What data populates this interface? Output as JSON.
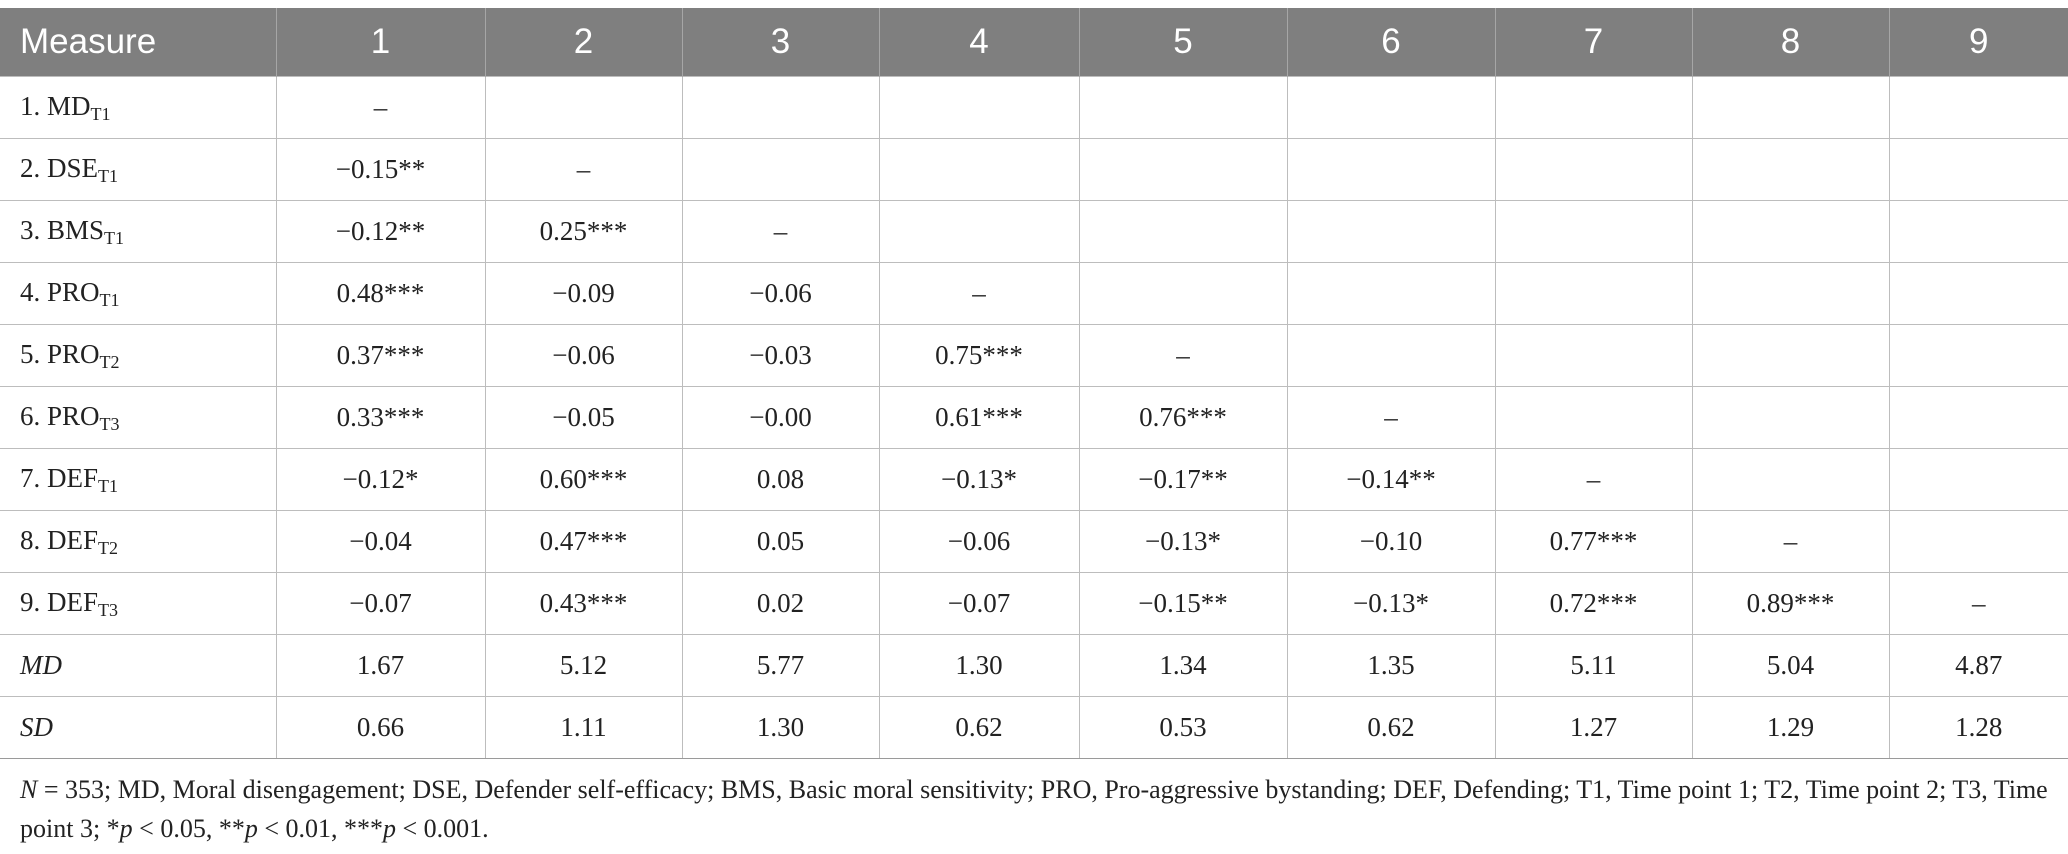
{
  "table": {
    "headers": [
      "Measure",
      "1",
      "2",
      "3",
      "4",
      "5",
      "6",
      "7",
      "8",
      "9"
    ],
    "rows": [
      {
        "label": "1. MD",
        "sub": "T1",
        "italic": false,
        "cells": [
          "–",
          "",
          "",
          "",
          "",
          "",
          "",
          "",
          ""
        ]
      },
      {
        "label": "2. DSE",
        "sub": "T1",
        "italic": false,
        "cells": [
          "−0.15**",
          "–",
          "",
          "",
          "",
          "",
          "",
          "",
          ""
        ]
      },
      {
        "label": "3. BMS",
        "sub": "T1",
        "italic": false,
        "cells": [
          "−0.12**",
          "0.25***",
          "–",
          "",
          "",
          "",
          "",
          "",
          ""
        ]
      },
      {
        "label": "4. PRO",
        "sub": "T1",
        "italic": false,
        "cells": [
          "0.48***",
          "−0.09",
          "−0.06",
          "–",
          "",
          "",
          "",
          "",
          ""
        ]
      },
      {
        "label": "5. PRO",
        "sub": "T2",
        "italic": false,
        "cells": [
          "0.37***",
          "−0.06",
          "−0.03",
          "0.75***",
          "–",
          "",
          "",
          "",
          ""
        ]
      },
      {
        "label": "6. PRO",
        "sub": "T3",
        "italic": false,
        "cells": [
          "0.33***",
          "−0.05",
          "−0.00",
          "0.61***",
          "0.76***",
          "–",
          "",
          "",
          ""
        ]
      },
      {
        "label": "7. DEF",
        "sub": "T1",
        "italic": false,
        "cells": [
          "−0.12*",
          "0.60***",
          "0.08",
          "−0.13*",
          "−0.17**",
          "−0.14**",
          "–",
          "",
          ""
        ]
      },
      {
        "label": "8. DEF",
        "sub": "T2",
        "italic": false,
        "cells": [
          "−0.04",
          "0.47***",
          "0.05",
          "−0.06",
          "−0.13*",
          "−0.10",
          "0.77***",
          "–",
          ""
        ]
      },
      {
        "label": "9. DEF",
        "sub": "T3",
        "italic": false,
        "cells": [
          "−0.07",
          "0.43***",
          "0.02",
          "−0.07",
          "−0.15**",
          "−0.13*",
          "0.72***",
          "0.89***",
          "–"
        ]
      },
      {
        "label": "MD",
        "sub": "",
        "italic": true,
        "cells": [
          "1.67",
          "5.12",
          "5.77",
          "1.30",
          "1.34",
          "1.35",
          "5.11",
          "5.04",
          "4.87"
        ]
      },
      {
        "label": "SD",
        "sub": "",
        "italic": true,
        "cells": [
          "0.66",
          "1.11",
          "1.30",
          "0.62",
          "0.53",
          "0.62",
          "1.27",
          "1.29",
          "1.28"
        ]
      }
    ]
  },
  "note": {
    "n_label": "N",
    "n_value": " = 353; MD, Moral disengagement; DSE, Defender self-efficacy; BMS, Basic moral sensitivity; PRO, Pro-aggressive bystanding; DEF, Defending; T1, Time point 1; T2, Time point 2; T3, Time point 3; *",
    "p1": "p",
    "p1_text": " < 0.05, **",
    "p2": "p",
    "p2_text": " < 0.01, ***",
    "p3": "p",
    "p3_text": " < 0.001."
  },
  "colors": {
    "header_bg": "#7f7f7f",
    "header_text": "#ffffff",
    "grid": "#bdbdbd"
  }
}
